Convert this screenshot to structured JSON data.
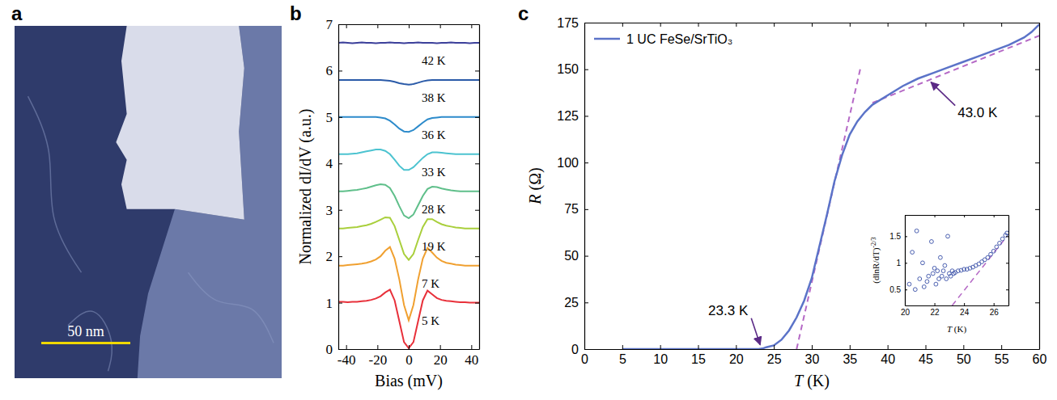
{
  "chart_data": [
    {
      "type": "image",
      "panel": "a",
      "field_of_view": 150,
      "scale_bar": {
        "label": "50 nm",
        "value": 50
      }
    },
    {
      "type": "line",
      "panel": "b",
      "x_label": "Bias (mV)",
      "y_label": "Normalized dI/dV (a.u.)",
      "xlim": [
        -45,
        45
      ],
      "xticks": [
        -40,
        -20,
        0,
        20,
        40
      ],
      "ylim": [
        0,
        7
      ],
      "yticks": [
        0,
        1,
        2,
        3,
        4,
        5,
        6,
        7
      ],
      "x": [
        -45,
        -42,
        -39,
        -36,
        -33,
        -30,
        -27,
        -24,
        -21,
        -18,
        -15,
        -12,
        -9,
        -6,
        -3,
        0,
        3,
        6,
        9,
        12,
        15,
        18,
        21,
        24,
        27,
        30,
        33,
        36,
        39,
        42,
        45
      ],
      "series": [
        {
          "name": "42 K",
          "color": "#3b3f9a",
          "values": [
            6.6,
            6.61,
            6.6,
            6.59,
            6.6,
            6.61,
            6.6,
            6.6,
            6.59,
            6.6,
            6.6,
            6.61,
            6.6,
            6.6,
            6.59,
            6.6,
            6.6,
            6.61,
            6.6,
            6.6,
            6.6,
            6.59,
            6.6,
            6.6,
            6.61,
            6.6,
            6.6,
            6.6,
            6.59,
            6.6,
            6.6
          ]
        },
        {
          "name": "38 K",
          "color": "#2a5aa8",
          "values": [
            5.8,
            5.8,
            5.8,
            5.8,
            5.8,
            5.8,
            5.8,
            5.8,
            5.8,
            5.8,
            5.79,
            5.78,
            5.76,
            5.73,
            5.71,
            5.7,
            5.71,
            5.74,
            5.77,
            5.79,
            5.8,
            5.8,
            5.8,
            5.8,
            5.8,
            5.8,
            5.8,
            5.8,
            5.8,
            5.8,
            5.8
          ]
        },
        {
          "name": "36 K",
          "color": "#2d8bcb",
          "values": [
            5.0,
            5.0,
            5.0,
            5.0,
            5.0,
            5.0,
            5.0,
            5.0,
            5.0,
            4.99,
            4.97,
            4.92,
            4.84,
            4.75,
            4.69,
            4.68,
            4.72,
            4.8,
            4.88,
            4.95,
            4.98,
            4.99,
            5.0,
            5.0,
            5.0,
            5.0,
            5.0,
            5.0,
            5.0,
            5.0,
            5.0
          ]
        },
        {
          "name": "33 K",
          "color": "#4cc3d0",
          "values": [
            4.2,
            4.2,
            4.2,
            4.21,
            4.22,
            4.24,
            4.26,
            4.28,
            4.3,
            4.3,
            4.27,
            4.2,
            4.08,
            3.95,
            3.86,
            3.86,
            3.92,
            4.02,
            4.12,
            4.2,
            4.24,
            4.24,
            4.23,
            4.22,
            4.21,
            4.2,
            4.2,
            4.2,
            4.2,
            4.2,
            4.2
          ]
        },
        {
          "name": "28 K",
          "color": "#5fbf8a",
          "values": [
            3.4,
            3.4,
            3.41,
            3.42,
            3.43,
            3.45,
            3.47,
            3.5,
            3.53,
            3.55,
            3.54,
            3.47,
            3.3,
            3.08,
            2.88,
            2.82,
            2.9,
            3.1,
            3.3,
            3.45,
            3.5,
            3.49,
            3.46,
            3.44,
            3.42,
            3.41,
            3.4,
            3.4,
            3.4,
            3.4,
            3.4
          ]
        },
        {
          "name": "19 K",
          "color": "#a9cf3c",
          "values": [
            2.6,
            2.6,
            2.61,
            2.62,
            2.63,
            2.65,
            2.67,
            2.7,
            2.74,
            2.79,
            2.84,
            2.83,
            2.65,
            2.35,
            2.05,
            1.92,
            2.05,
            2.35,
            2.63,
            2.8,
            2.8,
            2.74,
            2.69,
            2.66,
            2.64,
            2.62,
            2.61,
            2.6,
            2.6,
            2.6,
            2.6
          ]
        },
        {
          "name": "7 K",
          "color": "#f0a030",
          "values": [
            1.8,
            1.8,
            1.81,
            1.82,
            1.83,
            1.84,
            1.86,
            1.89,
            1.93,
            2.0,
            2.12,
            2.2,
            1.95,
            1.5,
            0.95,
            0.62,
            0.95,
            1.5,
            1.95,
            2.18,
            2.08,
            1.97,
            1.9,
            1.86,
            1.84,
            1.82,
            1.81,
            1.8,
            1.8,
            1.8,
            1.8
          ]
        },
        {
          "name": "5 K",
          "color": "#e8303a",
          "values": [
            1.02,
            1.02,
            1.01,
            1.02,
            1.02,
            1.03,
            1.04,
            1.06,
            1.09,
            1.14,
            1.22,
            1.28,
            1.05,
            0.6,
            0.15,
            0.02,
            0.15,
            0.6,
            1.05,
            1.26,
            1.18,
            1.1,
            1.06,
            1.04,
            1.03,
            1.02,
            1.01,
            1.01,
            1.0,
            1.0,
            1.0
          ]
        }
      ]
    },
    {
      "type": "line",
      "panel": "c",
      "x_label": "T (K)",
      "y_label": "R (Ω)",
      "xlim": [
        0,
        60
      ],
      "xticks": [
        0,
        5,
        10,
        15,
        20,
        25,
        30,
        35,
        40,
        45,
        50,
        55,
        60
      ],
      "ylim": [
        0,
        175
      ],
      "yticks": [
        0,
        25,
        50,
        75,
        100,
        125,
        150,
        175
      ],
      "legend": "top-left",
      "series": [
        {
          "name": "1 UC FeSe/SrTiO₃",
          "color": "#5b73c8",
          "x": [
            5,
            10,
            15,
            20,
            22,
            23,
            23.5,
            24,
            25,
            26,
            27,
            28,
            29,
            30,
            31,
            32,
            33,
            34,
            35,
            36,
            37,
            38,
            40,
            42,
            44,
            46,
            48,
            50,
            52,
            54,
            56,
            58,
            59,
            60
          ],
          "values": [
            0,
            0,
            0,
            0,
            0,
            0,
            0.3,
            1,
            2,
            5,
            10,
            17,
            26,
            38,
            55,
            72,
            90,
            104,
            115,
            122,
            127,
            131,
            136,
            141,
            145,
            148,
            151,
            154,
            157,
            160,
            163,
            167,
            170,
            174
          ]
        }
      ],
      "fits": [
        {
          "color": "#b569c6",
          "line_style": "dashed",
          "x": [
            28,
            36.5
          ],
          "values": [
            0,
            152
          ]
        },
        {
          "color": "#b569c6",
          "line_style": "dashed",
          "x": [
            38,
            60
          ],
          "values": [
            132,
            168
          ]
        }
      ],
      "annotations": [
        {
          "text": "43.0 K",
          "x": 45.5,
          "y": 144
        },
        {
          "text": "23.3 K",
          "x": 23.3,
          "y": 1
        }
      ],
      "inset": {
        "type": "scatter",
        "marker": "circle",
        "color": "#4a5fb0",
        "x_label": "T (K)",
        "y_label": "(dlnR/dT)",
        "y_label_exponent": "-2/3",
        "xlim": [
          20,
          27
        ],
        "xticks": [
          20,
          22,
          24,
          26
        ],
        "ylim": [
          0.2,
          1.9
        ],
        "yticks": [
          0.5,
          1,
          1.5
        ],
        "x": [
          20.3,
          20.5,
          20.7,
          20.8,
          21.0,
          21.2,
          21.3,
          21.5,
          21.6,
          21.8,
          21.9,
          22.0,
          22.1,
          22.2,
          22.3,
          22.4,
          22.5,
          22.6,
          22.7,
          22.8,
          22.9,
          23.0,
          23.1,
          23.2,
          23.3,
          23.4,
          23.6,
          23.8,
          24.0,
          24.2,
          24.4,
          24.6,
          24.8,
          25.0,
          25.2,
          25.4,
          25.6,
          25.8,
          26.0,
          26.2,
          26.4,
          26.6,
          26.8,
          26.9
        ],
        "values": [
          0.6,
          1.2,
          0.5,
          1.6,
          0.7,
          1.0,
          0.55,
          0.65,
          0.75,
          1.4,
          0.8,
          0.9,
          0.6,
          0.85,
          0.7,
          1.1,
          0.75,
          0.85,
          0.95,
          0.7,
          1.5,
          0.8,
          0.75,
          0.85,
          0.8,
          0.82,
          0.85,
          0.86,
          0.88,
          0.88,
          0.9,
          0.92,
          0.95,
          0.98,
          1.02,
          1.06,
          1.1,
          1.16,
          1.22,
          1.3,
          1.37,
          1.45,
          1.52,
          1.56
        ],
        "fit": {
          "color": "#b569c6",
          "line_style": "dashed",
          "x": [
            23.2,
            26.9
          ],
          "values": [
            0.2,
            1.5
          ]
        }
      }
    }
  ]
}
